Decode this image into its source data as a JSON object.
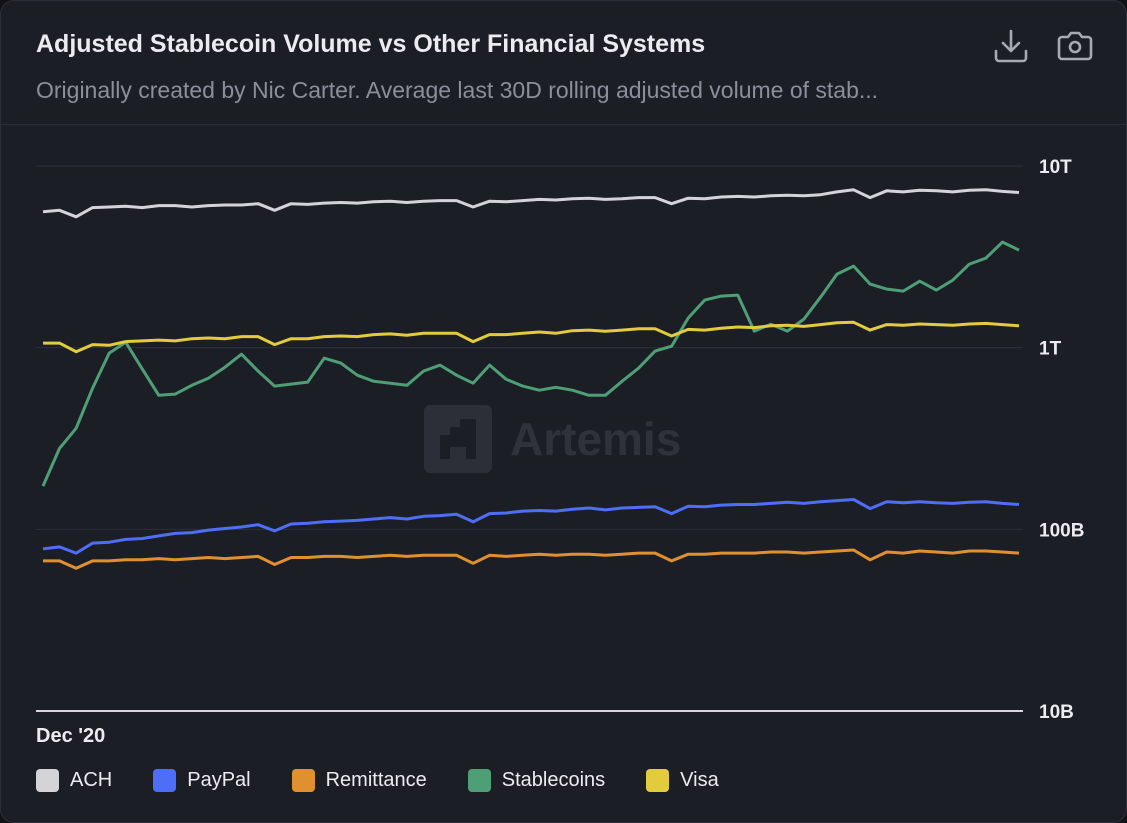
{
  "header": {
    "title": "Adjusted Stablecoin Volume vs Other Financial Systems",
    "subtitle": "Originally created by Nic Carter. Average last 30D rolling adjusted volume of stab...",
    "download_icon": "download-icon",
    "screenshot_icon": "camera-icon"
  },
  "watermark": "Artemis",
  "chart_data": {
    "type": "line",
    "title": "Adjusted Stablecoin Volume vs Other Financial Systems",
    "y_scale": "log",
    "ylim": [
      10,
      10000
    ],
    "y_ticks": [
      {
        "value": 10000,
        "label": "10T"
      },
      {
        "value": 1000,
        "label": "1T"
      },
      {
        "value": 100,
        "label": "100B"
      },
      {
        "value": 10,
        "label": "10B"
      }
    ],
    "x_ticks": [
      "Dec '20"
    ],
    "x_start": "Dec '20",
    "grid": true,
    "legend": "bottom-left",
    "series": [
      {
        "name": "ACH",
        "color": "#d4d4d8",
        "values": [
          5600,
          5700,
          5250,
          5900,
          5950,
          6000,
          5900,
          6050,
          6050,
          5950,
          6050,
          6100,
          6100,
          6200,
          5700,
          6200,
          6150,
          6250,
          6300,
          6250,
          6350,
          6400,
          6300,
          6400,
          6450,
          6450,
          5950,
          6400,
          6350,
          6450,
          6550,
          6500,
          6600,
          6650,
          6550,
          6600,
          6700,
          6700,
          6200,
          6650,
          6600,
          6750,
          6800,
          6750,
          6850,
          6900,
          6850,
          6950,
          7200,
          7400,
          6700,
          7300,
          7200,
          7350,
          7300,
          7200,
          7350,
          7400,
          7250,
          7150
        ]
      },
      {
        "name": "PayPal",
        "color": "#4f6ef7",
        "values": [
          78,
          80,
          74,
          84,
          85,
          88,
          89,
          92,
          95,
          96,
          99,
          101,
          103,
          106,
          98,
          107,
          108,
          110,
          111,
          112,
          114,
          116,
          114,
          118,
          119,
          121,
          110,
          122,
          123,
          126,
          127,
          126,
          129,
          131,
          128,
          131,
          132,
          133,
          122,
          134,
          133,
          136,
          137,
          137,
          139,
          141,
          139,
          142,
          144,
          146,
          130,
          142,
          140,
          142,
          140,
          139,
          141,
          142,
          139,
          137
        ]
      },
      {
        "name": "Remittance",
        "color": "#e0902e",
        "values": [
          67,
          67,
          61,
          67,
          67,
          68,
          68,
          69,
          68,
          69,
          70,
          69,
          70,
          71,
          64,
          70,
          70,
          71,
          71,
          70,
          71,
          72,
          71,
          72,
          72,
          72,
          65,
          72,
          71,
          72,
          73,
          72,
          73,
          73,
          72,
          73,
          74,
          74,
          67,
          73,
          73,
          74,
          74,
          74,
          75,
          75,
          74,
          75,
          76,
          77,
          68,
          75,
          74,
          76,
          75,
          74,
          76,
          76,
          75,
          74
        ]
      },
      {
        "name": "Stablecoins",
        "color": "#4e9f76",
        "values": [
          173,
          279,
          360,
          598,
          933,
          1072,
          762,
          547,
          555,
          621,
          679,
          781,
          920,
          743,
          614,
          630,
          646,
          875,
          822,
          705,
          653,
          637,
          621,
          743,
          802,
          705,
          637,
          802,
          670,
          614,
          583,
          605,
          583,
          547,
          547,
          653,
          771,
          957,
          1019,
          1456,
          1828,
          1923,
          1946,
          1233,
          1346,
          1233,
          1436,
          1897,
          2541,
          2812,
          2239,
          2101,
          2048,
          2323,
          2075,
          2355,
          2884,
          3112,
          3811,
          3443
        ]
      },
      {
        "name": "Visa",
        "color": "#e2cc3e",
        "values": [
          1060,
          1060,
          950,
          1040,
          1030,
          1080,
          1090,
          1100,
          1090,
          1120,
          1130,
          1120,
          1150,
          1150,
          1040,
          1120,
          1120,
          1150,
          1160,
          1150,
          1180,
          1190,
          1170,
          1200,
          1200,
          1200,
          1080,
          1180,
          1180,
          1200,
          1220,
          1200,
          1240,
          1250,
          1230,
          1250,
          1270,
          1270,
          1160,
          1260,
          1250,
          1280,
          1300,
          1290,
          1320,
          1330,
          1310,
          1340,
          1370,
          1380,
          1250,
          1340,
          1330,
          1350,
          1340,
          1330,
          1350,
          1360,
          1340,
          1320
        ]
      }
    ]
  }
}
